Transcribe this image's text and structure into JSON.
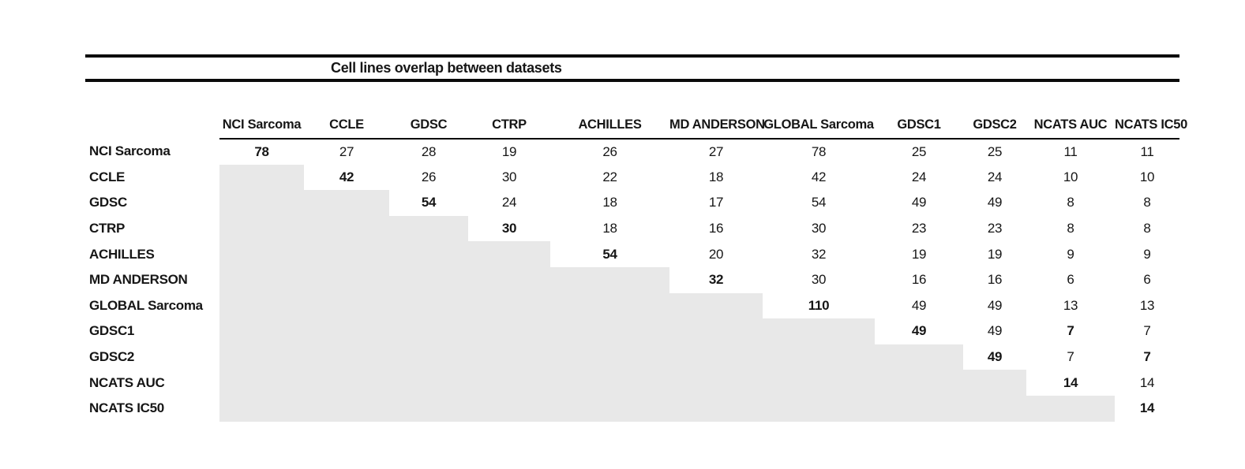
{
  "title": "Cell lines overlap between datasets",
  "table": {
    "columns": [
      "NCI Sarcoma",
      "CCLE",
      "GDSC",
      "CTRP",
      "ACHILLES",
      "MD ANDERSON",
      "GLOBAL Sarcoma",
      "GDSC1",
      "GDSC2",
      "NCATS AUC",
      "NCATS IC50"
    ],
    "rows": [
      {
        "label": "NCI Sarcoma",
        "values": [
          "78",
          "27",
          "28",
          "19",
          "26",
          "27",
          "78",
          "25",
          "25",
          "11",
          "11"
        ],
        "bold_cols": [
          0
        ]
      },
      {
        "label": "CCLE",
        "values": [
          null,
          "42",
          "26",
          "30",
          "22",
          "18",
          "42",
          "24",
          "24",
          "10",
          "10"
        ],
        "bold_cols": [
          1
        ]
      },
      {
        "label": "GDSC",
        "values": [
          null,
          null,
          "54",
          "24",
          "18",
          "17",
          "54",
          "49",
          "49",
          "8",
          "8"
        ],
        "bold_cols": [
          2
        ]
      },
      {
        "label": "CTRP",
        "values": [
          null,
          null,
          null,
          "30",
          "18",
          "16",
          "30",
          "23",
          "23",
          "8",
          "8"
        ],
        "bold_cols": [
          3
        ]
      },
      {
        "label": "ACHILLES",
        "values": [
          null,
          null,
          null,
          null,
          "54",
          "20",
          "32",
          "19",
          "19",
          "9",
          "9"
        ],
        "bold_cols": [
          4
        ]
      },
      {
        "label": "MD ANDERSON",
        "values": [
          null,
          null,
          null,
          null,
          null,
          "32",
          "30",
          "16",
          "16",
          "6",
          "6"
        ],
        "bold_cols": [
          5
        ]
      },
      {
        "label": "GLOBAL Sarcoma",
        "values": [
          null,
          null,
          null,
          null,
          null,
          null,
          "110",
          "49",
          "49",
          "13",
          "13"
        ],
        "bold_cols": [
          6
        ]
      },
      {
        "label": "GDSC1",
        "values": [
          null,
          null,
          null,
          null,
          null,
          null,
          null,
          "49",
          "49",
          "7",
          "7"
        ],
        "bold_cols": [
          7,
          9
        ]
      },
      {
        "label": "GDSC2",
        "values": [
          null,
          null,
          null,
          null,
          null,
          null,
          null,
          null,
          "49",
          "7",
          "7"
        ],
        "bold_cols": [
          8,
          10
        ]
      },
      {
        "label": "NCATS AUC",
        "values": [
          null,
          null,
          null,
          null,
          null,
          null,
          null,
          null,
          null,
          "14",
          "14"
        ],
        "bold_cols": [
          9
        ]
      },
      {
        "label": "NCATS IC50",
        "values": [
          null,
          null,
          null,
          null,
          null,
          null,
          null,
          null,
          null,
          null,
          "14"
        ],
        "bold_cols": [
          10
        ]
      }
    ]
  },
  "chart_data": {
    "type": "table",
    "title": "Cell lines overlap between datasets",
    "categories": [
      "NCI Sarcoma",
      "CCLE",
      "GDSC",
      "CTRP",
      "ACHILLES",
      "MD ANDERSON",
      "GLOBAL Sarcoma",
      "GDSC1",
      "GDSC2",
      "NCATS AUC",
      "NCATS IC50"
    ],
    "matrix_upper_triangle": [
      [
        78,
        27,
        28,
        19,
        26,
        27,
        78,
        25,
        25,
        11,
        11
      ],
      [
        null,
        42,
        26,
        30,
        22,
        18,
        42,
        24,
        24,
        10,
        10
      ],
      [
        null,
        null,
        54,
        24,
        18,
        17,
        54,
        49,
        49,
        8,
        8
      ],
      [
        null,
        null,
        null,
        30,
        18,
        16,
        30,
        23,
        23,
        8,
        8
      ],
      [
        null,
        null,
        null,
        null,
        54,
        20,
        32,
        19,
        19,
        9,
        9
      ],
      [
        null,
        null,
        null,
        null,
        null,
        32,
        30,
        16,
        16,
        6,
        6
      ],
      [
        null,
        null,
        null,
        null,
        null,
        null,
        110,
        49,
        49,
        13,
        13
      ],
      [
        null,
        null,
        null,
        null,
        null,
        null,
        null,
        49,
        49,
        7,
        7
      ],
      [
        null,
        null,
        null,
        null,
        null,
        null,
        null,
        null,
        49,
        7,
        7
      ],
      [
        null,
        null,
        null,
        null,
        null,
        null,
        null,
        null,
        null,
        14,
        14
      ],
      [
        null,
        null,
        null,
        null,
        null,
        null,
        null,
        null,
        null,
        null,
        14
      ]
    ],
    "shaded_color": "#e8e8e8",
    "layout_hint": "lower-left triangle shaded gray; diagonal values bold"
  }
}
